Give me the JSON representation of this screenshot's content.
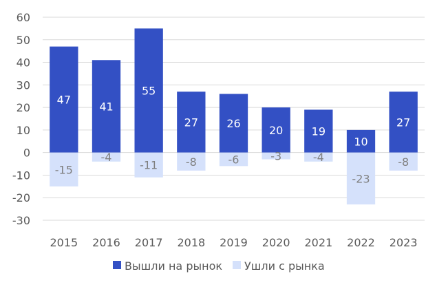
{
  "chart_data": {
    "type": "bar",
    "categories": [
      "2015",
      "2016",
      "2017",
      "2018",
      "2019",
      "2020",
      "2021",
      "2022",
      "2023"
    ],
    "series": [
      {
        "name": "Вышли на рынок",
        "values": [
          47,
          41,
          55,
          27,
          26,
          20,
          19,
          10,
          27
        ],
        "color": "#3350c4"
      },
      {
        "name": "Ушли с рынка",
        "values": [
          -15,
          -4,
          -11,
          -8,
          -6,
          -3,
          -4,
          -23,
          -8
        ],
        "color": "#d5e1fb"
      }
    ],
    "yticks": [
      60,
      50,
      40,
      30,
      20,
      10,
      0,
      -10,
      -20,
      -30
    ],
    "ylim": [
      -30,
      60
    ],
    "stacked": true,
    "grid": true,
    "legend_position": "bottom",
    "title": "",
    "xlabel": "",
    "ylabel": ""
  }
}
